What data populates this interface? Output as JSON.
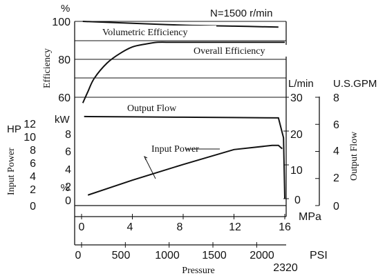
{
  "chart_data": {
    "type": "line",
    "condition_label": "N=1500 r/min",
    "x_axis": {
      "title": "Pressure",
      "mpa_unit": "MPa",
      "mpa_ticks": [
        "0",
        "4",
        "8",
        "12",
        "16"
      ],
      "psi_unit": "PSI",
      "psi_ticks": [
        "0",
        "500",
        "1000",
        "1500",
        "2000"
      ],
      "psi_max_label": "2320",
      "range_mpa": [
        0,
        16
      ]
    },
    "efficiency_axis": {
      "title": "Efficiency",
      "unit": "%",
      "ticks": [
        "100",
        "80",
        "60"
      ],
      "range": [
        55,
        100
      ]
    },
    "input_power_axes": {
      "title": "Input Power",
      "hp_unit": "HP",
      "hp_ticks": [
        "12",
        "10",
        "8",
        "6",
        "4",
        "2",
        "0"
      ],
      "kw_unit": "kW",
      "kw_ticks": [
        "8",
        "6",
        "4",
        "2",
        "0"
      ]
    },
    "output_flow_axes": {
      "title": "Output Flow",
      "lmin_unit": "L/min",
      "lmin_ticks": [
        "30",
        "20",
        "10",
        "0"
      ],
      "gpm_unit": "U.S.GPM",
      "gpm_ticks": [
        "8",
        "6",
        "4",
        "2",
        "0"
      ]
    },
    "series": [
      {
        "name": "Volumetric Efficiency",
        "axis": "efficiency_percent",
        "x": [
          0.1,
          4,
          8,
          12,
          15.5
        ],
        "y": [
          100,
          99,
          98,
          97.5,
          97
        ]
      },
      {
        "name": "Overall Efficiency",
        "axis": "efficiency_percent",
        "x": [
          0.1,
          0.5,
          1,
          2,
          3,
          4,
          5,
          6,
          7,
          8,
          10,
          12,
          14,
          16
        ],
        "y": [
          57,
          63,
          70,
          78,
          83,
          86.5,
          88,
          89,
          89,
          89,
          89,
          89,
          89,
          89
        ]
      },
      {
        "name": "Output Flow",
        "axis": "flow_lmin",
        "x": [
          0.2,
          4,
          8,
          12,
          15.5,
          15.9,
          16
        ],
        "y": [
          24.3,
          24.2,
          24.1,
          24.0,
          23.9,
          18,
          0
        ]
      },
      {
        "name": "Input Power",
        "axis": "power_kw",
        "x": [
          0.5,
          4,
          8,
          12,
          15,
          15.5,
          15.8
        ],
        "y": [
          0.6,
          2.4,
          4.3,
          6.1,
          6.6,
          6.6,
          6.2
        ]
      }
    ]
  }
}
